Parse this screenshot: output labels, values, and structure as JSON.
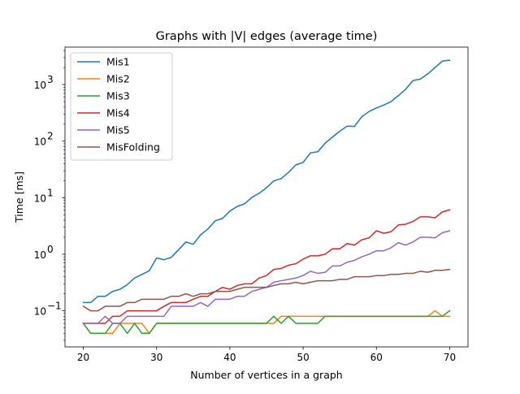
{
  "chart_data": {
    "type": "line",
    "title": "Graphs with |V| edges (average time)",
    "xlabel": "Number of vertices in a graph",
    "ylabel": "Time [ms]",
    "y_scale": "log",
    "xlim": [
      17.5,
      72.5
    ],
    "ylim": [
      0.023,
      4600
    ],
    "x_ticks": [
      20,
      30,
      40,
      50,
      60,
      70
    ],
    "x_tick_labels": [
      "20",
      "30",
      "40",
      "50",
      "60",
      "70"
    ],
    "y_ticks": [
      0.1,
      1,
      10,
      100,
      1000
    ],
    "y_tick_labels": [
      "10",
      "10",
      "10",
      "10",
      "10"
    ],
    "y_tick_exponents": [
      "−1",
      "0",
      "1",
      "2",
      "3"
    ],
    "grid": false,
    "legend_position": "top-left",
    "x": [
      20,
      21,
      22,
      23,
      24,
      25,
      26,
      27,
      28,
      29,
      30,
      31,
      32,
      33,
      34,
      35,
      36,
      37,
      38,
      39,
      40,
      41,
      42,
      43,
      44,
      45,
      46,
      47,
      48,
      49,
      50,
      51,
      52,
      53,
      54,
      55,
      56,
      57,
      58,
      59,
      60,
      61,
      62,
      63,
      64,
      65,
      66,
      67,
      68,
      69,
      70
    ],
    "series": [
      {
        "name": "Mis1",
        "color": "#1f77b4",
        "values": [
          0.14,
          0.14,
          0.18,
          0.18,
          0.22,
          0.24,
          0.29,
          0.38,
          0.44,
          0.51,
          0.86,
          0.8,
          0.88,
          1.2,
          1.65,
          1.5,
          2.2,
          2.8,
          3.9,
          4.3,
          5.8,
          7.0,
          7.8,
          10.1,
          12.0,
          15.0,
          19.8,
          21.8,
          28.0,
          38.0,
          42.0,
          62.0,
          65.0,
          92.0,
          118.0,
          150.0,
          184.0,
          182.0,
          270.0,
          335.0,
          385.0,
          435.0,
          500.0,
          640.0,
          830.0,
          1180.0,
          1250.0,
          1550.0,
          2000.0,
          2600.0,
          2700.0
        ]
      },
      {
        "name": "Mis2",
        "color": "#ff7f0e",
        "values": [
          0.06,
          0.04,
          0.04,
          0.04,
          0.04,
          0.06,
          0.06,
          0.06,
          0.06,
          0.04,
          0.06,
          0.06,
          0.06,
          0.06,
          0.06,
          0.06,
          0.06,
          0.06,
          0.06,
          0.06,
          0.06,
          0.06,
          0.06,
          0.06,
          0.06,
          0.06,
          0.06,
          0.08,
          0.08,
          0.08,
          0.08,
          0.08,
          0.08,
          0.08,
          0.08,
          0.08,
          0.08,
          0.08,
          0.08,
          0.08,
          0.08,
          0.08,
          0.08,
          0.08,
          0.08,
          0.08,
          0.08,
          0.08,
          0.1,
          0.08,
          0.08
        ]
      },
      {
        "name": "Mis3",
        "color": "#2ca02c",
        "values": [
          0.06,
          0.04,
          0.04,
          0.04,
          0.06,
          0.06,
          0.04,
          0.06,
          0.04,
          0.04,
          0.06,
          0.06,
          0.06,
          0.06,
          0.06,
          0.06,
          0.06,
          0.06,
          0.06,
          0.06,
          0.06,
          0.06,
          0.06,
          0.06,
          0.06,
          0.06,
          0.08,
          0.06,
          0.08,
          0.06,
          0.06,
          0.06,
          0.06,
          0.08,
          0.08,
          0.08,
          0.08,
          0.08,
          0.08,
          0.08,
          0.08,
          0.08,
          0.08,
          0.08,
          0.08,
          0.08,
          0.08,
          0.08,
          0.08,
          0.08,
          0.1
        ]
      },
      {
        "name": "Mis4",
        "color": "#d62728",
        "values": [
          0.06,
          0.06,
          0.06,
          0.06,
          0.08,
          0.08,
          0.1,
          0.1,
          0.1,
          0.1,
          0.1,
          0.12,
          0.14,
          0.14,
          0.14,
          0.16,
          0.18,
          0.18,
          0.22,
          0.26,
          0.24,
          0.28,
          0.3,
          0.3,
          0.38,
          0.42,
          0.54,
          0.56,
          0.64,
          0.68,
          0.82,
          0.94,
          0.94,
          1.0,
          1.25,
          1.25,
          1.55,
          1.45,
          1.8,
          1.95,
          2.6,
          2.35,
          2.5,
          3.3,
          3.4,
          3.8,
          4.6,
          4.6,
          4.4,
          5.6,
          6.1
        ]
      },
      {
        "name": "Mis5",
        "color": "#9467bd",
        "values": [
          0.06,
          0.06,
          0.06,
          0.08,
          0.06,
          0.06,
          0.08,
          0.08,
          0.08,
          0.08,
          0.08,
          0.08,
          0.12,
          0.12,
          0.12,
          0.12,
          0.14,
          0.12,
          0.16,
          0.16,
          0.16,
          0.18,
          0.18,
          0.22,
          0.24,
          0.26,
          0.32,
          0.34,
          0.36,
          0.38,
          0.42,
          0.5,
          0.46,
          0.48,
          0.62,
          0.62,
          0.72,
          0.78,
          0.9,
          1.0,
          1.15,
          1.15,
          1.3,
          1.6,
          1.45,
          1.65,
          2.0,
          2.0,
          1.95,
          2.4,
          2.6
        ]
      },
      {
        "name": "MisFolding",
        "color": "#8c564b",
        "values": [
          0.12,
          0.1,
          0.1,
          0.12,
          0.12,
          0.12,
          0.14,
          0.14,
          0.16,
          0.16,
          0.16,
          0.16,
          0.18,
          0.18,
          0.2,
          0.18,
          0.2,
          0.2,
          0.22,
          0.22,
          0.22,
          0.24,
          0.26,
          0.26,
          0.26,
          0.26,
          0.28,
          0.3,
          0.3,
          0.32,
          0.3,
          0.32,
          0.34,
          0.34,
          0.34,
          0.36,
          0.36,
          0.4,
          0.4,
          0.4,
          0.42,
          0.42,
          0.44,
          0.44,
          0.46,
          0.46,
          0.5,
          0.48,
          0.52,
          0.52,
          0.54
        ]
      }
    ]
  }
}
